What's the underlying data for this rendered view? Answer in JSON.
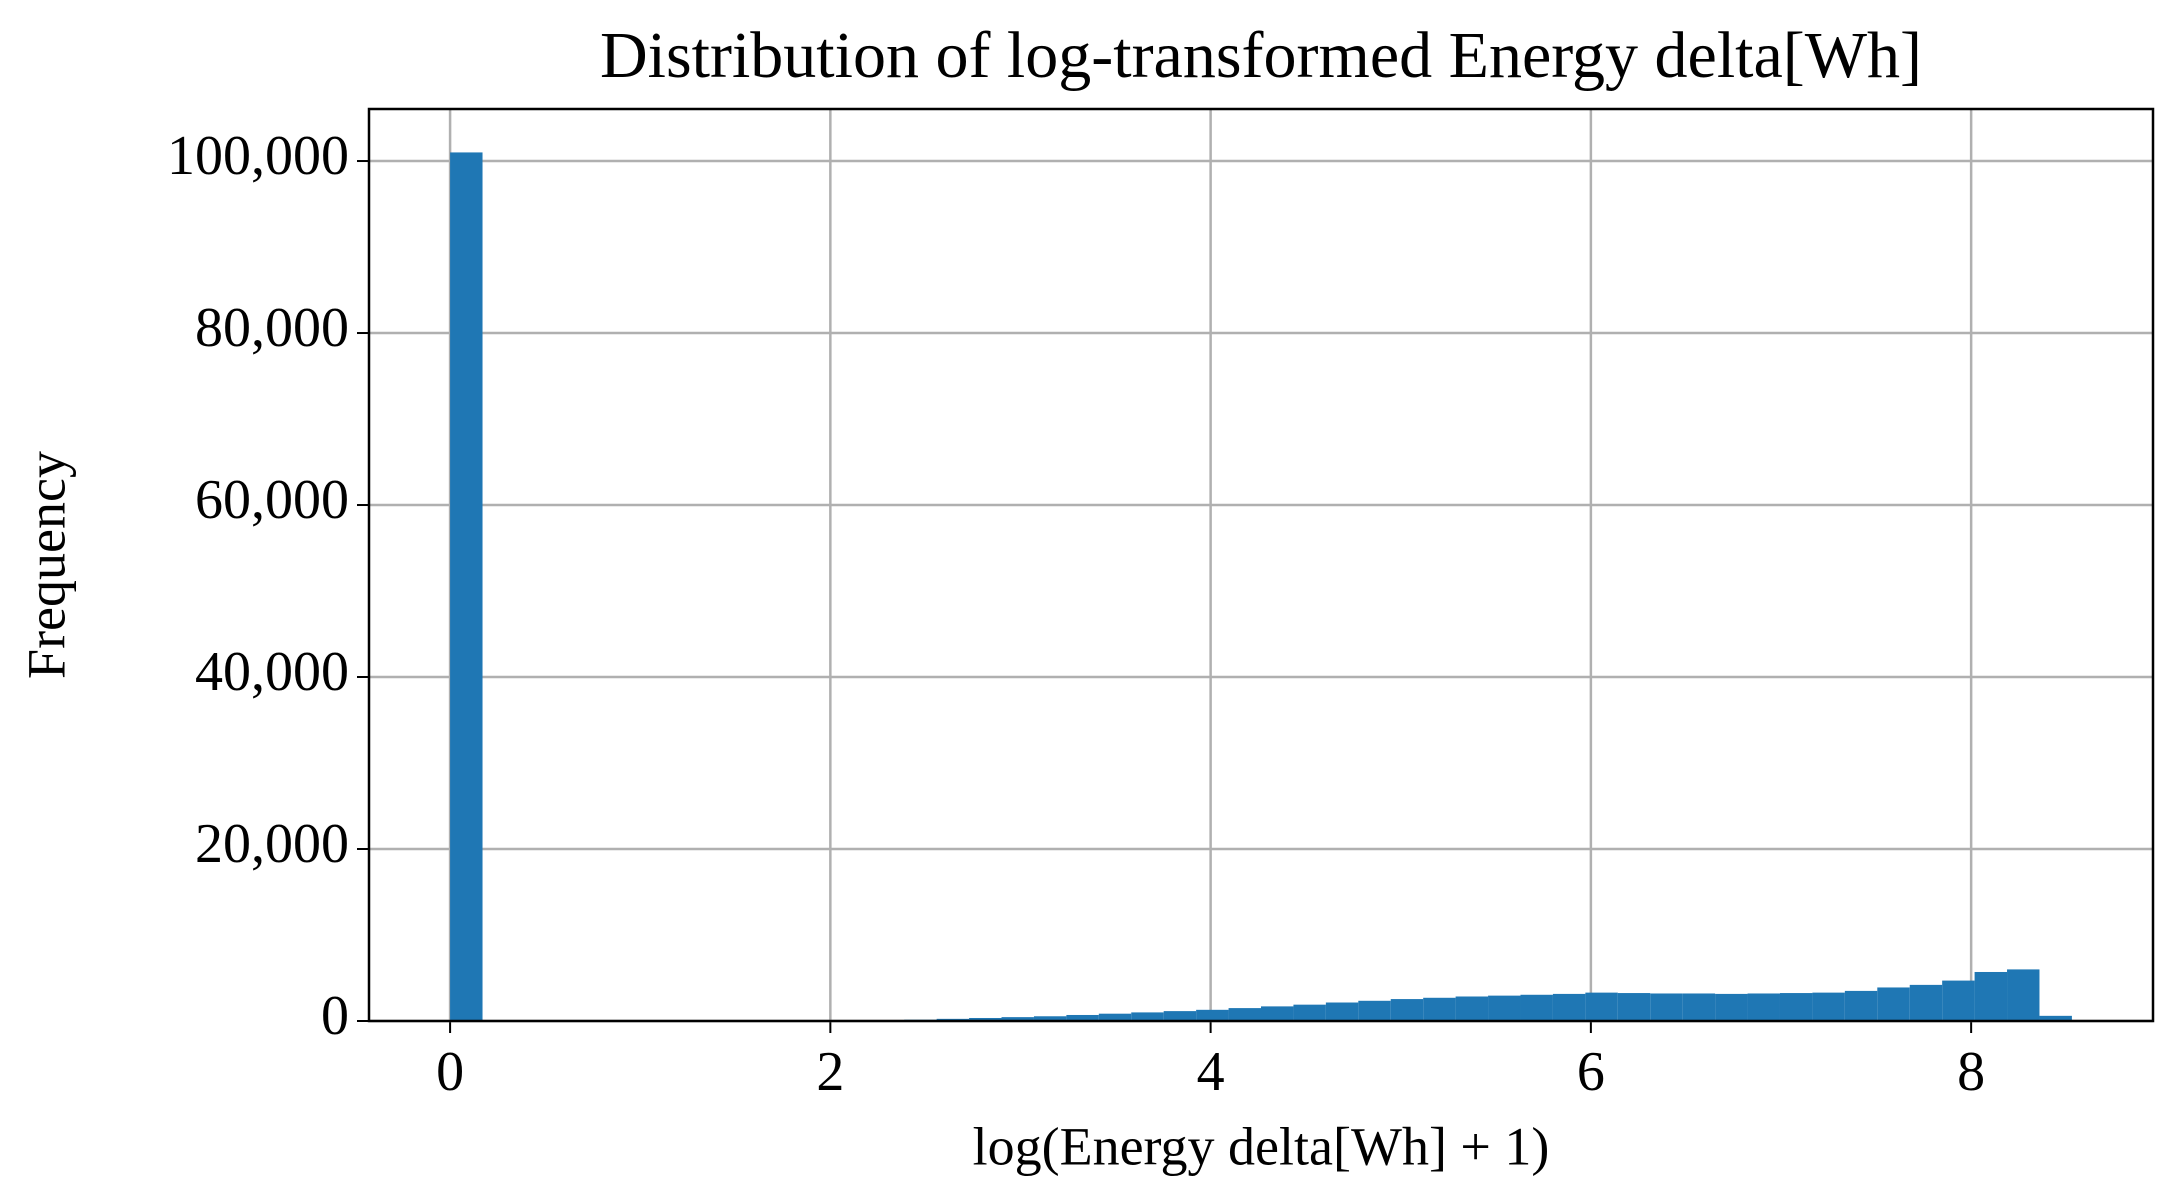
{
  "chart_data": {
    "type": "histogram",
    "title": "Distribution of log-transformed Energy delta[Wh]",
    "x_label": "log(Energy delta[Wh] + 1)",
    "y_label": "Frequency",
    "color": "#1f77b4",
    "bins": [
      0,
      0.1706,
      0.3412,
      0.5118,
      0.6824,
      0.853,
      1.0236,
      1.1942,
      1.3648,
      1.5354,
      1.706,
      1.8766,
      2.0472,
      2.2178,
      2.3884,
      2.559,
      2.7296,
      2.9002,
      3.0708,
      3.2414,
      3.412,
      3.5826,
      3.7532,
      3.9238,
      4.0944,
      4.265,
      4.4356,
      4.6062,
      4.7768,
      4.9474,
      5.118,
      5.2886,
      5.4592,
      5.6298,
      5.8004,
      5.971,
      6.1416,
      6.3122,
      6.4828,
      6.6534,
      6.824,
      6.9946,
      7.1652,
      7.3358,
      7.5064,
      7.677,
      7.8476,
      8.0182,
      8.1888,
      8.3594,
      8.53
    ],
    "counts": [
      101000,
      0,
      0,
      0,
      0,
      0,
      0,
      0,
      0,
      0,
      0,
      20,
      50,
      100,
      150,
      250,
      350,
      450,
      550,
      700,
      850,
      1000,
      1150,
      1300,
      1500,
      1700,
      1900,
      2150,
      2350,
      2550,
      2700,
      2850,
      2950,
      3050,
      3150,
      3300,
      3250,
      3200,
      3200,
      3150,
      3200,
      3250,
      3300,
      3500,
      3900,
      4200,
      4700,
      5700,
      6000,
      600
    ],
    "xlim": [
      -0.4265,
      8.9565
    ],
    "ylim": [
      0,
      106050
    ],
    "xticks": [
      0,
      2,
      4,
      6,
      8
    ],
    "yticks": [
      0,
      {
        "value": 20000,
        "label": "20,000"
      },
      {
        "value": 40000,
        "label": "40,000"
      },
      {
        "value": 60000,
        "label": "60,000"
      },
      {
        "value": 80000,
        "label": "80,000"
      },
      {
        "value": 100000,
        "label": "100,000"
      }
    ],
    "grid": true
  }
}
